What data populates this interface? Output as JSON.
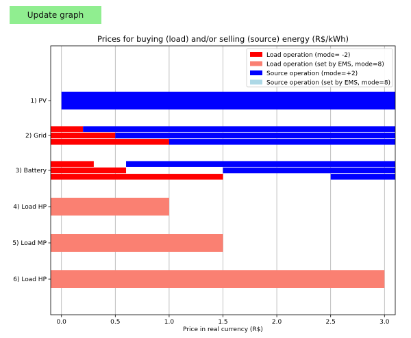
{
  "button": {
    "label": "Update graph"
  },
  "chart_data": {
    "type": "bar",
    "orientation": "horizontal",
    "title": "Prices for buying (load) and/or selling (source) energy (R$/kWh)",
    "xlabel": "Price in real currency (R$)",
    "ylabel": "",
    "xlim": [
      -0.1,
      3.1
    ],
    "xticks": [
      "0.0",
      "0.5",
      "1.0",
      "1.5",
      "2.0",
      "2.5",
      "3.0"
    ],
    "grid": "vertical",
    "legend_position": "top-right",
    "categories": [
      "1) PV",
      "2) Grid",
      "3) Battery",
      "4) Load HP",
      "5) Load MP",
      "6) Load HP"
    ],
    "series": [
      {
        "name": "Load operation (mode= -2)",
        "color": "#ff0000"
      },
      {
        "name": "Load operation (set by EMS, mode=8)",
        "color": "#fa8072"
      },
      {
        "name": "Source operation (mode=+2)",
        "color": "#0000ff"
      },
      {
        "name": "Source operation (set by EMS, mode=8)",
        "color": "#add8e6"
      }
    ],
    "bars": [
      {
        "category": "1) PV",
        "slot": "full",
        "series": 2,
        "start": 0.0,
        "end": 3.1
      },
      {
        "category": "2) Grid",
        "slot": 0,
        "series": 0,
        "start": -0.1,
        "end": 0.2
      },
      {
        "category": "2) Grid",
        "slot": 0,
        "series": 2,
        "start": 0.2,
        "end": 3.1
      },
      {
        "category": "2) Grid",
        "slot": 1,
        "series": 0,
        "start": -0.1,
        "end": 0.5
      },
      {
        "category": "2) Grid",
        "slot": 1,
        "series": 2,
        "start": 0.5,
        "end": 3.1
      },
      {
        "category": "2) Grid",
        "slot": 2,
        "series": 0,
        "start": -0.1,
        "end": 1.0
      },
      {
        "category": "2) Grid",
        "slot": 2,
        "series": 2,
        "start": 1.0,
        "end": 3.1
      },
      {
        "category": "3) Battery",
        "slot": 0,
        "series": 0,
        "start": -0.1,
        "end": 0.3
      },
      {
        "category": "3) Battery",
        "slot": 0,
        "series": 2,
        "start": 0.6,
        "end": 3.1
      },
      {
        "category": "3) Battery",
        "slot": 1,
        "series": 0,
        "start": -0.1,
        "end": 0.6
      },
      {
        "category": "3) Battery",
        "slot": 1,
        "series": 2,
        "start": 1.5,
        "end": 3.1
      },
      {
        "category": "3) Battery",
        "slot": 2,
        "series": 0,
        "start": -0.1,
        "end": 1.5
      },
      {
        "category": "3) Battery",
        "slot": 2,
        "series": 2,
        "start": 2.5,
        "end": 3.1
      },
      {
        "category": "4) Load HP",
        "slot": "full",
        "series": 1,
        "start": -0.1,
        "end": 1.0
      },
      {
        "category": "5) Load MP",
        "slot": "full",
        "series": 1,
        "start": -0.1,
        "end": 1.5
      },
      {
        "category": "6) Load HP",
        "slot": "full",
        "series": 1,
        "start": -0.1,
        "end": 3.0
      }
    ]
  }
}
